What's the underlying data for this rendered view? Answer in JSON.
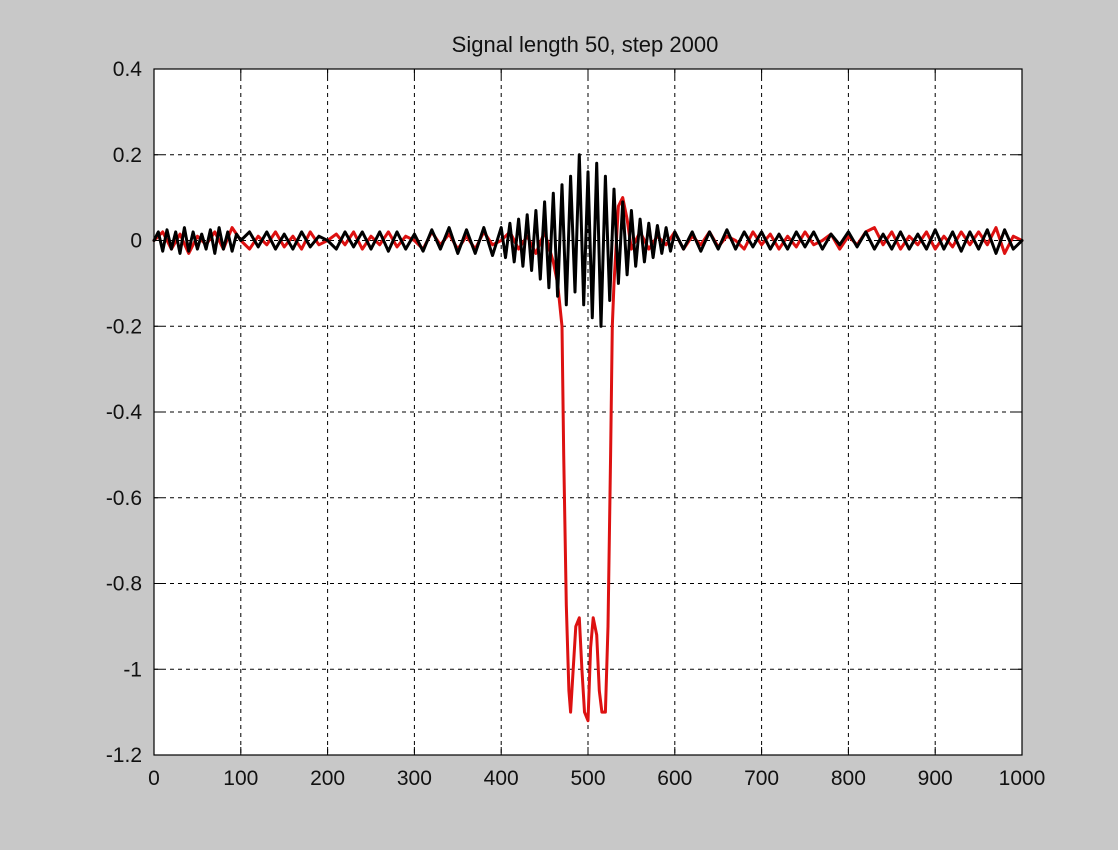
{
  "chart_data": {
    "type": "line",
    "title": "Signal length 50, step 2000",
    "xlabel": "",
    "ylabel": "",
    "xlim": [
      0,
      1000
    ],
    "ylim": [
      -1.2,
      0.4
    ],
    "grid": true,
    "x_ticks": [
      0,
      100,
      200,
      300,
      400,
      500,
      600,
      700,
      800,
      900,
      1000
    ],
    "y_ticks": [
      0.4,
      0.2,
      0,
      -0.2,
      -0.4,
      -0.6,
      -0.8,
      -1,
      -1.2
    ],
    "x_tick_labels": [
      "0",
      "100",
      "200",
      "300",
      "400",
      "500",
      "600",
      "700",
      "800",
      "900",
      "1000"
    ],
    "y_tick_labels": [
      "0.4",
      "0.2",
      "0",
      "-0.2",
      "-0.4",
      "-0.6",
      "-0.8",
      "-1",
      "-1.2"
    ],
    "series": [
      {
        "color": "#dd1111",
        "x": [
          0,
          10,
          20,
          30,
          40,
          50,
          60,
          70,
          80,
          90,
          100,
          110,
          120,
          130,
          140,
          150,
          160,
          170,
          180,
          190,
          200,
          210,
          220,
          230,
          240,
          250,
          260,
          270,
          280,
          290,
          300,
          310,
          320,
          330,
          340,
          350,
          360,
          370,
          380,
          390,
          400,
          410,
          420,
          430,
          440,
          450,
          460,
          465,
          470,
          472,
          475,
          478,
          480,
          483,
          486,
          490,
          493,
          496,
          500,
          503,
          506,
          510,
          513,
          516,
          520,
          523,
          526,
          528,
          530,
          535,
          540,
          545,
          550,
          560,
          570,
          580,
          590,
          600,
          610,
          620,
          630,
          640,
          650,
          660,
          670,
          680,
          690,
          700,
          710,
          720,
          730,
          740,
          750,
          760,
          770,
          780,
          790,
          800,
          810,
          820,
          830,
          840,
          850,
          860,
          870,
          880,
          890,
          900,
          910,
          920,
          930,
          940,
          950,
          960,
          970,
          980,
          990,
          1000
        ],
        "values": [
          0,
          0.02,
          -0.02,
          0.015,
          -0.03,
          0.01,
          -0.01,
          0.02,
          -0.02,
          0.03,
          0,
          -0.02,
          0.01,
          -0.01,
          0.02,
          -0.015,
          0.01,
          -0.02,
          0.02,
          -0.01,
          0,
          0.015,
          -0.01,
          0.02,
          -0.02,
          0.01,
          -0.01,
          0.02,
          -0.015,
          0.01,
          0,
          -0.02,
          0.02,
          -0.01,
          0.015,
          -0.02,
          0.01,
          -0.02,
          0.02,
          -0.01,
          0,
          0.02,
          -0.02,
          0.01,
          -0.03,
          0.02,
          -0.05,
          -0.1,
          -0.2,
          -0.5,
          -0.85,
          -1.05,
          -1.1,
          -1.0,
          -0.9,
          -0.88,
          -1.0,
          -1.1,
          -1.12,
          -0.95,
          -0.88,
          -0.92,
          -1.05,
          -1.1,
          -1.1,
          -0.9,
          -0.5,
          -0.2,
          -0.1,
          0.08,
          0.1,
          0.05,
          -0.02,
          0.02,
          -0.02,
          0.01,
          -0.01,
          0.02,
          -0.02,
          0.01,
          -0.01,
          0.02,
          -0.015,
          0.01,
          0,
          -0.02,
          0.02,
          -0.01,
          0.015,
          -0.02,
          0.01,
          -0.015,
          0.02,
          -0.01,
          0,
          0.015,
          -0.02,
          0.01,
          -0.01,
          0.02,
          0.03,
          -0.01,
          0.02,
          -0.02,
          0.01,
          -0.01,
          0.02,
          -0.02,
          0.01,
          -0.015,
          0.02,
          -0.01,
          0.02,
          -0.01,
          0.03,
          -0.03,
          0.01,
          0
        ]
      },
      {
        "color": "#000000",
        "x": [
          0,
          5,
          10,
          15,
          20,
          25,
          30,
          35,
          40,
          45,
          50,
          55,
          60,
          65,
          70,
          75,
          80,
          85,
          90,
          95,
          100,
          110,
          120,
          130,
          140,
          150,
          160,
          170,
          180,
          190,
          200,
          210,
          220,
          230,
          240,
          250,
          260,
          270,
          280,
          290,
          300,
          310,
          320,
          330,
          340,
          350,
          360,
          370,
          380,
          390,
          400,
          405,
          410,
          415,
          420,
          425,
          430,
          435,
          440,
          445,
          450,
          455,
          460,
          465,
          470,
          475,
          480,
          485,
          490,
          495,
          500,
          505,
          510,
          515,
          520,
          525,
          530,
          535,
          540,
          545,
          550,
          555,
          560,
          565,
          570,
          575,
          580,
          585,
          590,
          595,
          600,
          610,
          620,
          630,
          640,
          650,
          660,
          670,
          680,
          690,
          700,
          710,
          720,
          730,
          740,
          750,
          760,
          770,
          780,
          790,
          800,
          810,
          820,
          830,
          840,
          850,
          860,
          870,
          880,
          890,
          900,
          910,
          920,
          930,
          940,
          950,
          960,
          970,
          980,
          990,
          1000
        ],
        "values": [
          0,
          0.02,
          -0.025,
          0.025,
          -0.02,
          0.02,
          -0.03,
          0.03,
          -0.025,
          0.02,
          -0.02,
          0.015,
          -0.02,
          0.025,
          -0.03,
          0.03,
          -0.02,
          0.02,
          -0.025,
          0.015,
          0,
          0.02,
          -0.015,
          0.02,
          -0.02,
          0.015,
          -0.02,
          0.02,
          -0.015,
          0.01,
          0,
          -0.02,
          0.02,
          -0.015,
          0.02,
          -0.02,
          0.02,
          -0.025,
          0.02,
          -0.02,
          0.015,
          -0.025,
          0.025,
          -0.02,
          0.03,
          -0.03,
          0.025,
          -0.03,
          0.03,
          -0.035,
          0.03,
          -0.04,
          0.04,
          -0.05,
          0.05,
          -0.06,
          0.06,
          -0.07,
          0.07,
          -0.09,
          0.09,
          -0.11,
          0.11,
          -0.13,
          0.13,
          -0.15,
          0.15,
          -0.12,
          0.2,
          -0.15,
          0.16,
          -0.18,
          0.18,
          -0.2,
          0.15,
          -0.14,
          0.12,
          -0.1,
          0.09,
          -0.08,
          0.07,
          -0.06,
          0.05,
          -0.05,
          0.04,
          -0.04,
          0.035,
          -0.03,
          0.03,
          -0.025,
          0.02,
          -0.02,
          0.02,
          -0.025,
          0.02,
          -0.02,
          0.025,
          -0.02,
          0.02,
          -0.015,
          0.02,
          -0.02,
          0.015,
          -0.02,
          0.02,
          -0.015,
          0.02,
          -0.02,
          0.015,
          -0.01,
          0.02,
          -0.015,
          0.02,
          -0.02,
          0.015,
          -0.02,
          0.02,
          -0.02,
          0.015,
          -0.02,
          0.025,
          -0.02,
          0.02,
          -0.025,
          0.02,
          -0.02,
          0.025,
          -0.03,
          0.025,
          -0.02,
          0
        ]
      }
    ]
  }
}
